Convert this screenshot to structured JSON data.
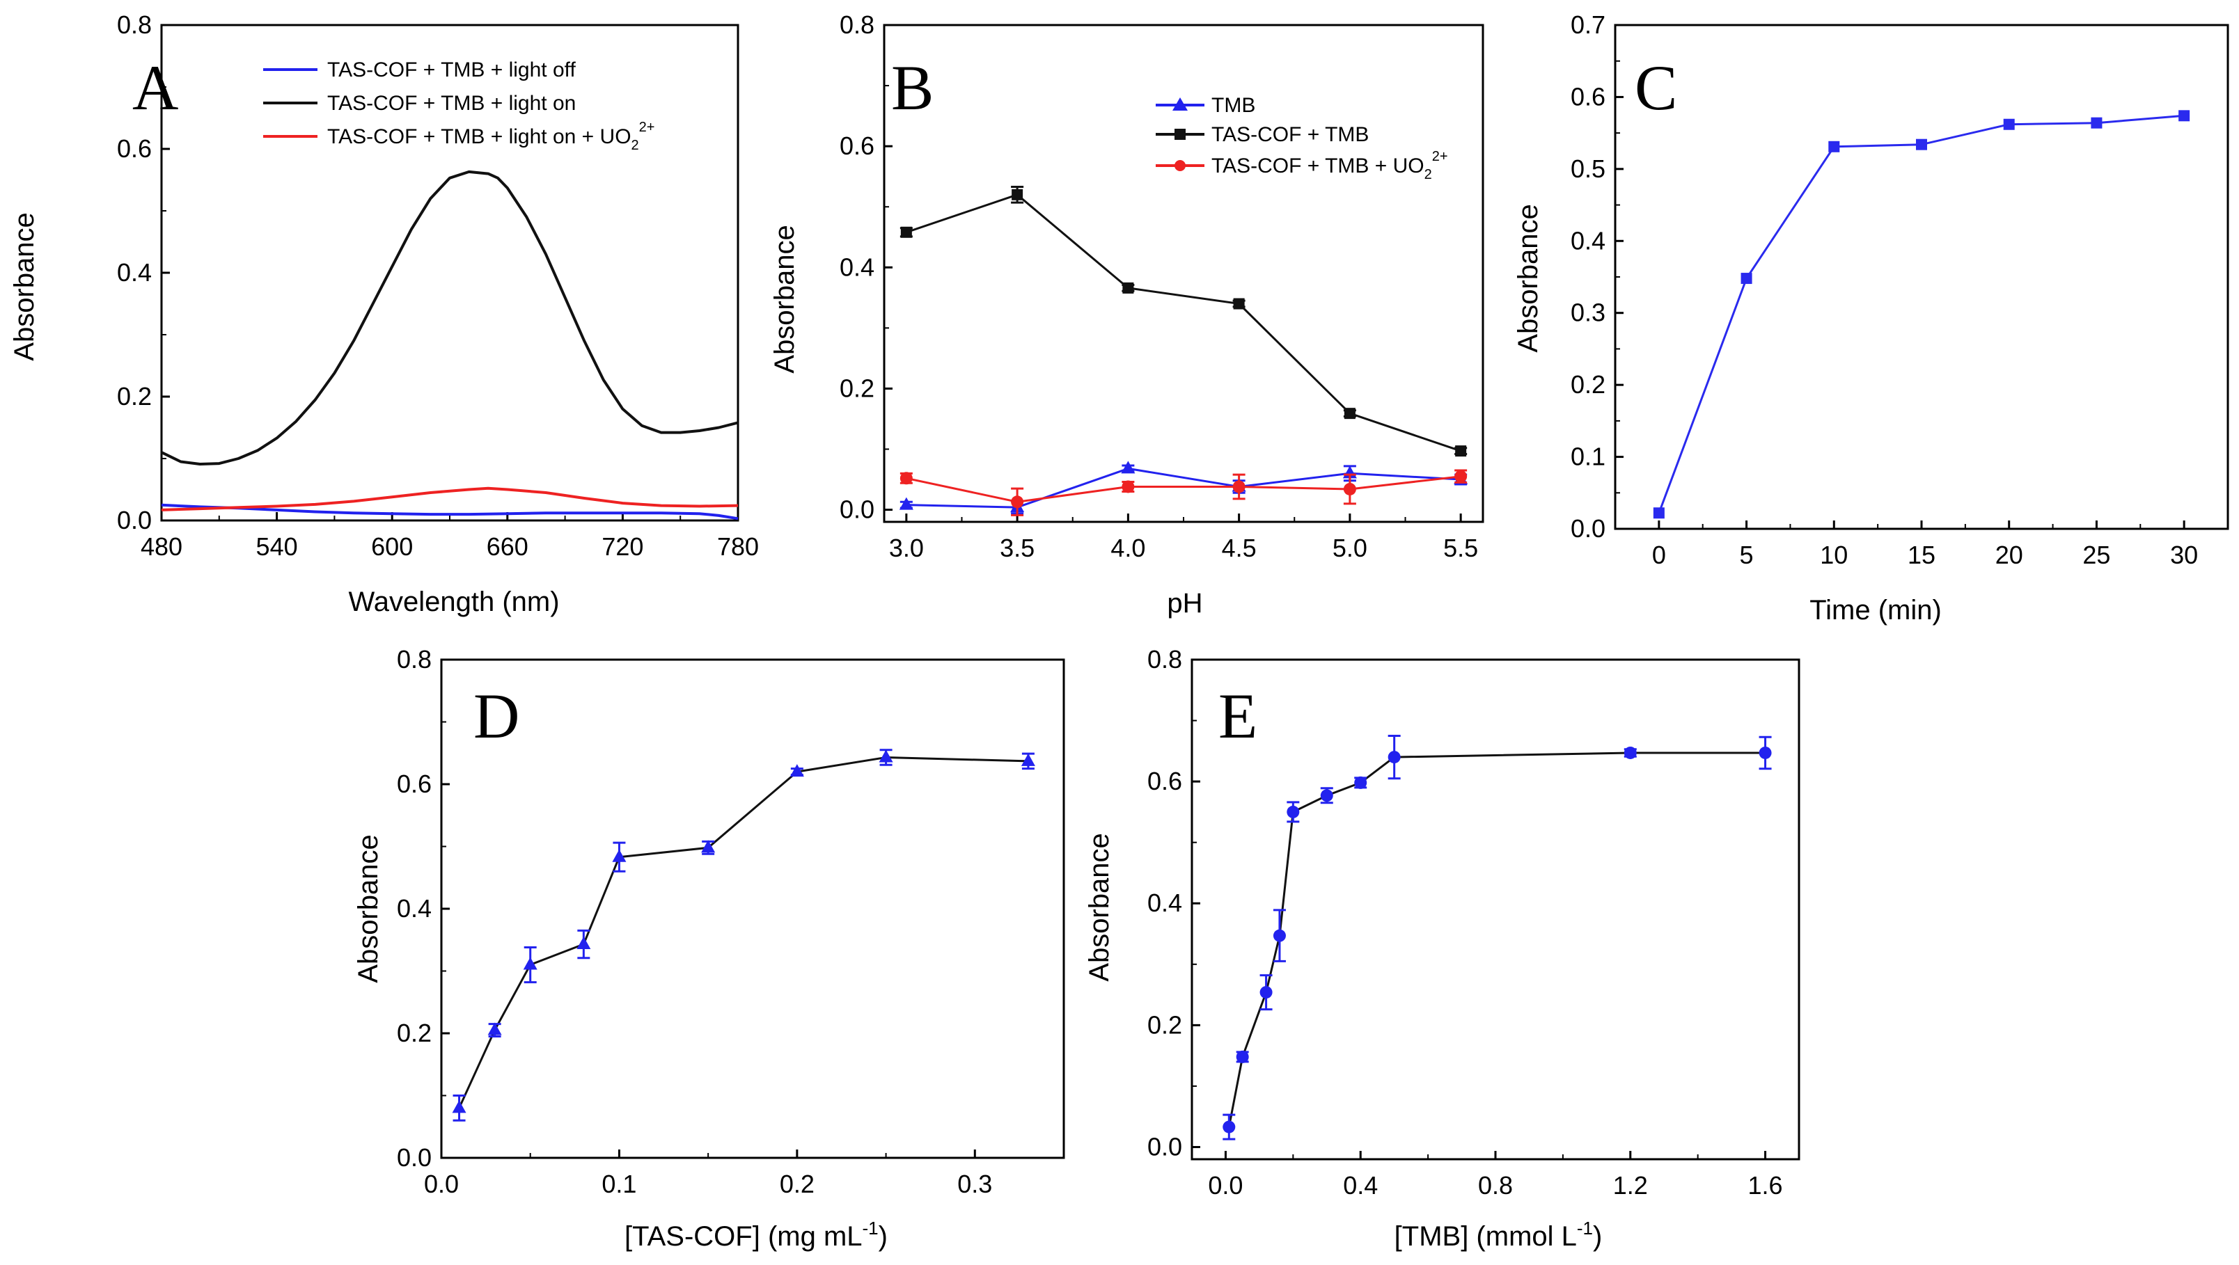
{
  "chart_data": [
    {
      "panel": "A",
      "type": "line",
      "xlabel": "Wavelength (nm)",
      "ylabel": "Absorbance",
      "xlim": [
        480,
        780
      ],
      "ylim": [
        0,
        0.8
      ],
      "xticks": [
        480,
        540,
        600,
        660,
        720,
        780
      ],
      "yticks": [
        0.0,
        0.2,
        0.4,
        0.6,
        0.8
      ],
      "xtick_labels": [
        "480",
        "540",
        "600",
        "660",
        "720",
        "780"
      ],
      "ytick_labels": [
        "0.0",
        "0.2",
        "0.4",
        "0.6",
        "0.8"
      ],
      "legend_position": "top",
      "series": [
        {
          "name": "TAS-COF + TMB + light off",
          "legend_label": "TAS-COF + TMB + light off",
          "color": "#2222ee",
          "x": [
            480,
            500,
            520,
            540,
            560,
            580,
            600,
            620,
            640,
            660,
            680,
            700,
            720,
            740,
            760,
            770,
            780
          ],
          "y": [
            0.025,
            0.022,
            0.02,
            0.017,
            0.014,
            0.012,
            0.011,
            0.01,
            0.01,
            0.011,
            0.012,
            0.012,
            0.012,
            0.012,
            0.011,
            0.008,
            0.003
          ]
        },
        {
          "name": "TAS-COF + TMB + light on",
          "legend_label": "TAS-COF + TMB + light on",
          "color": "#111111",
          "x": [
            480,
            490,
            500,
            510,
            520,
            530,
            540,
            550,
            560,
            570,
            580,
            590,
            600,
            610,
            620,
            630,
            640,
            650,
            655,
            660,
            670,
            680,
            690,
            700,
            710,
            720,
            730,
            740,
            750,
            760,
            770,
            780
          ],
          "y": [
            0.11,
            0.095,
            0.091,
            0.092,
            0.1,
            0.113,
            0.133,
            0.16,
            0.195,
            0.238,
            0.29,
            0.35,
            0.41,
            0.47,
            0.52,
            0.553,
            0.563,
            0.56,
            0.553,
            0.537,
            0.49,
            0.43,
            0.36,
            0.29,
            0.227,
            0.18,
            0.153,
            0.142,
            0.142,
            0.145,
            0.15,
            0.158
          ]
        },
        {
          "name": "TAS-COF + TMB + light on + UO2 2+",
          "legend_label": "TAS-COF + TMB + light on + UO",
          "legend_sub": "2",
          "legend_sup": "2+",
          "color": "#ee2222",
          "x": [
            480,
            500,
            520,
            540,
            560,
            580,
            600,
            620,
            640,
            650,
            660,
            680,
            700,
            720,
            740,
            760,
            780
          ],
          "y": [
            0.017,
            0.019,
            0.021,
            0.023,
            0.026,
            0.031,
            0.038,
            0.045,
            0.05,
            0.052,
            0.05,
            0.045,
            0.036,
            0.028,
            0.024,
            0.023,
            0.024
          ]
        }
      ]
    },
    {
      "panel": "B",
      "type": "line",
      "xlabel": "pH",
      "ylabel": "Absorbance",
      "xlim": [
        2.9,
        5.6
      ],
      "ylim": [
        -0.02,
        0.8
      ],
      "xticks": [
        3.0,
        3.5,
        4.0,
        4.5,
        5.0,
        5.5
      ],
      "yticks": [
        0.0,
        0.2,
        0.4,
        0.6,
        0.8
      ],
      "xtick_labels": [
        "3.0",
        "3.5",
        "4.0",
        "4.5",
        "5.0",
        "5.5"
      ],
      "ytick_labels": [
        "0.0",
        "0.2",
        "0.4",
        "0.6",
        "0.8"
      ],
      "legend_position": "top-right",
      "series": [
        {
          "name": "TMB",
          "legend_label": "TMB",
          "marker": "triangle",
          "color": "#2222ee",
          "x": [
            3.0,
            3.5,
            4.0,
            4.5,
            5.0,
            5.5
          ],
          "y": [
            0.008,
            0.004,
            0.068,
            0.038,
            0.06,
            0.05
          ],
          "err": [
            0.005,
            0.01,
            0.005,
            0.01,
            0.012,
            0.008
          ]
        },
        {
          "name": "TAS-COF + TMB",
          "legend_label": "TAS-COF + TMB",
          "marker": "square",
          "color": "#111111",
          "x": [
            3.0,
            3.5,
            4.0,
            4.5,
            5.0,
            5.5
          ],
          "y": [
            0.458,
            0.52,
            0.366,
            0.34,
            0.159,
            0.097
          ],
          "err": [
            0.007,
            0.013,
            0.005,
            0.005,
            0.005,
            0.005
          ]
        },
        {
          "name": "TAS-COF + TMB + UO2 2+",
          "legend_label": "TAS-COF + TMB + UO",
          "legend_sub": "2",
          "legend_sup": "2+",
          "marker": "circle",
          "color": "#ee2222",
          "x": [
            3.0,
            3.5,
            4.0,
            4.5,
            5.0,
            5.5
          ],
          "y": [
            0.052,
            0.013,
            0.038,
            0.038,
            0.034,
            0.055
          ],
          "err": [
            0.008,
            0.022,
            0.008,
            0.02,
            0.024,
            0.01
          ]
        }
      ]
    },
    {
      "panel": "C",
      "type": "line",
      "xlabel": "Time (min)",
      "ylabel": "Absorbance",
      "xlim": [
        -2.5,
        32.5
      ],
      "ylim": [
        0,
        0.7
      ],
      "xticks": [
        0,
        5,
        10,
        15,
        20,
        25,
        30
      ],
      "yticks": [
        0.0,
        0.1,
        0.2,
        0.3,
        0.4,
        0.5,
        0.6,
        0.7
      ],
      "xtick_labels": [
        "0",
        "5",
        "10",
        "15",
        "20",
        "25",
        "30"
      ],
      "ytick_labels": [
        "0.0",
        "0.1",
        "0.2",
        "0.3",
        "0.4",
        "0.5",
        "0.6",
        "0.7"
      ],
      "series": [
        {
          "name": "Absorbance",
          "marker": "square",
          "color": "#2a2aee",
          "x": [
            0,
            5,
            10,
            15,
            20,
            25,
            30
          ],
          "y": [
            0.022,
            0.348,
            0.531,
            0.534,
            0.562,
            0.564,
            0.574
          ]
        }
      ]
    },
    {
      "panel": "D",
      "type": "line",
      "xlabel": "[TAS-COF] (mg mL",
      "xlabel_sup": "-1",
      "xlabel_tail": ")",
      "ylabel": "Absorbance",
      "xlim": [
        0,
        0.35
      ],
      "ylim": [
        0,
        0.8
      ],
      "xticks": [
        0.0,
        0.1,
        0.2,
        0.3
      ],
      "yticks": [
        0.0,
        0.2,
        0.4,
        0.6,
        0.8
      ],
      "xtick_labels": [
        "0.0",
        "0.1",
        "0.2",
        "0.3"
      ],
      "ytick_labels": [
        "0.0",
        "0.2",
        "0.4",
        "0.6",
        "0.8"
      ],
      "series": [
        {
          "name": "Absorbance",
          "marker": "triangle",
          "color": "#2222ee",
          "line_color": "#111111",
          "x": [
            0.01,
            0.03,
            0.05,
            0.08,
            0.1,
            0.15,
            0.2,
            0.25,
            0.33
          ],
          "y": [
            0.08,
            0.205,
            0.31,
            0.343,
            0.483,
            0.498,
            0.62,
            0.643,
            0.637
          ],
          "err": [
            0.02,
            0.01,
            0.028,
            0.022,
            0.023,
            0.01,
            0.005,
            0.012,
            0.012
          ]
        }
      ]
    },
    {
      "panel": "E",
      "type": "line",
      "xlabel": "[TMB] (mmol L",
      "xlabel_sup": "-1",
      "xlabel_tail": ")",
      "ylabel": "Absorbance",
      "xlim": [
        -0.1,
        1.7
      ],
      "ylim": [
        -0.02,
        0.8
      ],
      "xticks": [
        0.0,
        0.4,
        0.8,
        1.2,
        1.6
      ],
      "yticks": [
        0.0,
        0.2,
        0.4,
        0.6,
        0.8
      ],
      "xtick_labels": [
        "0.0",
        "0.4",
        "0.8",
        "1.2",
        "1.6"
      ],
      "ytick_labels": [
        "0.0",
        "0.2",
        "0.4",
        "0.6",
        "0.8"
      ],
      "series": [
        {
          "name": "Absorbance",
          "marker": "circle",
          "color": "#2222ee",
          "line_color": "#111111",
          "x": [
            0.01,
            0.05,
            0.12,
            0.16,
            0.2,
            0.3,
            0.4,
            0.5,
            1.2,
            1.6
          ],
          "y": [
            0.033,
            0.148,
            0.254,
            0.347,
            0.55,
            0.577,
            0.598,
            0.64,
            0.647,
            0.647
          ],
          "err": [
            0.02,
            0.008,
            0.028,
            0.042,
            0.016,
            0.012,
            0.008,
            0.035,
            0.006,
            0.026
          ]
        }
      ]
    }
  ]
}
